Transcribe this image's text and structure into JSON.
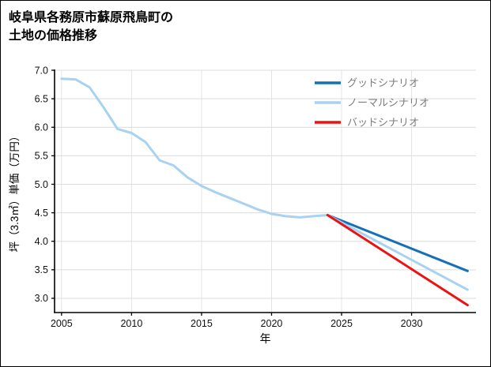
{
  "title": {
    "line1": "岐阜県各務原市蘇原飛鳥町の",
    "line2": "土地の価格推移"
  },
  "legend": [
    {
      "label": "グッドシナリオ",
      "color": "#1670b8"
    },
    {
      "label": "ノーマルシナリオ",
      "color": "#a8d2f0"
    },
    {
      "label": "バッドシナリオ",
      "color": "#ee1111"
    }
  ],
  "chart_data": {
    "type": "line",
    "title": "岐阜県各務原市蘇原飛鳥町の土地の価格推移",
    "xlabel": "年",
    "ylabel": "坪（3.3㎡）単価（万円）",
    "xlim": [
      2004.5,
      2034.6
    ],
    "ylim": [
      2.75,
      7.0
    ],
    "xticks": [
      2005,
      2010,
      2015,
      2020,
      2025,
      2030
    ],
    "yticks": [
      3.0,
      3.5,
      4.0,
      4.5,
      5.0,
      5.5,
      6.0,
      6.5,
      7.0
    ],
    "grid": true,
    "legend_position": "top-right",
    "series": [
      {
        "name": "historical",
        "color": "#a8d2f0",
        "width": 3,
        "x": [
          2005,
          2006,
          2007,
          2008,
          2009,
          2010,
          2011,
          2012,
          2013,
          2014,
          2015,
          2016,
          2017,
          2018,
          2019,
          2020,
          2021,
          2022,
          2023,
          2024
        ],
        "values": [
          6.85,
          6.84,
          6.7,
          6.35,
          5.97,
          5.9,
          5.74,
          5.42,
          5.33,
          5.12,
          4.97,
          4.86,
          4.76,
          4.66,
          4.56,
          4.48,
          4.44,
          4.42,
          4.44,
          4.46
        ]
      },
      {
        "name": "グッドシナリオ",
        "color": "#1670b8",
        "width": 3,
        "x": [
          2024,
          2034
        ],
        "values": [
          4.46,
          3.48
        ]
      },
      {
        "name": "ノーマルシナリオ",
        "color": "#a8d2f0",
        "width": 3,
        "x": [
          2024,
          2034
        ],
        "values": [
          4.46,
          3.15
        ]
      },
      {
        "name": "バッドシナリオ",
        "color": "#ee1111",
        "width": 3,
        "x": [
          2024,
          2034
        ],
        "values": [
          4.46,
          2.88
        ]
      }
    ]
  }
}
